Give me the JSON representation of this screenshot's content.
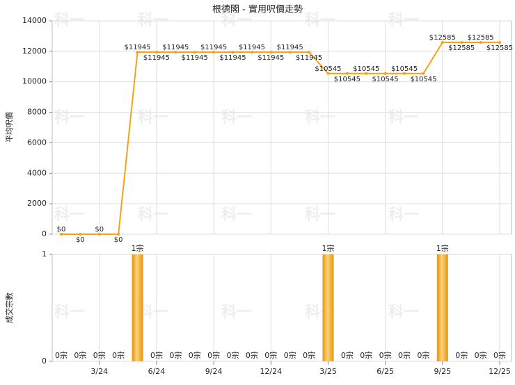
{
  "watermark": "科一",
  "chart_data": [
    {
      "type": "line",
      "title": "根德閣 - 實用呎價走勢",
      "y_label": "平均呎價",
      "color": "#f5a21b",
      "values": [
        0,
        0,
        0,
        0,
        11945,
        11945,
        11945,
        11945,
        11945,
        11945,
        11945,
        11945,
        11945,
        11945,
        10545,
        10545,
        10545,
        10545,
        10545,
        10545,
        12585,
        12585,
        12585,
        12585
      ],
      "value_labels": [
        "$0",
        "$0",
        "$0",
        "$0",
        "$11945",
        "$11945",
        "$11945",
        "$11945",
        "$11945",
        "$11945",
        "$11945",
        "$11945",
        "$11945",
        "$11945",
        "$10545",
        "$10545",
        "$10545",
        "$10545",
        "$10545",
        "$10545",
        "$12585",
        "$12585",
        "$12585",
        "$12585"
      ],
      "ylim": [
        0,
        14000
      ],
      "yticks": [
        0,
        2000,
        4000,
        6000,
        8000,
        10000,
        12000,
        14000
      ],
      "grid": true
    },
    {
      "type": "bar",
      "y_label": "成交宗數",
      "color": "#f5a21b",
      "categories": [
        null,
        null,
        "3/24",
        null,
        null,
        "6/24",
        null,
        null,
        "9/24",
        null,
        null,
        "12/24",
        null,
        null,
        "3/25",
        null,
        null,
        "6/25",
        null,
        null,
        "9/25",
        null,
        null,
        "12/25"
      ],
      "values": [
        0,
        0,
        0,
        0,
        1,
        0,
        0,
        0,
        0,
        0,
        0,
        0,
        0,
        0,
        1,
        0,
        0,
        0,
        0,
        0,
        1,
        0,
        0,
        0
      ],
      "value_labels": [
        "0宗",
        "0宗",
        "0宗",
        "0宗",
        "1宗",
        "0宗",
        "0宗",
        "0宗",
        "0宗",
        "0宗",
        "0宗",
        "0宗",
        "0宗",
        "0宗",
        "1宗",
        "0宗",
        "0宗",
        "0宗",
        "0宗",
        "0宗",
        "1宗",
        "0宗",
        "0宗",
        "0宗"
      ],
      "ylim": [
        0,
        1
      ],
      "yticks": [
        0,
        1
      ],
      "grid": true
    }
  ]
}
